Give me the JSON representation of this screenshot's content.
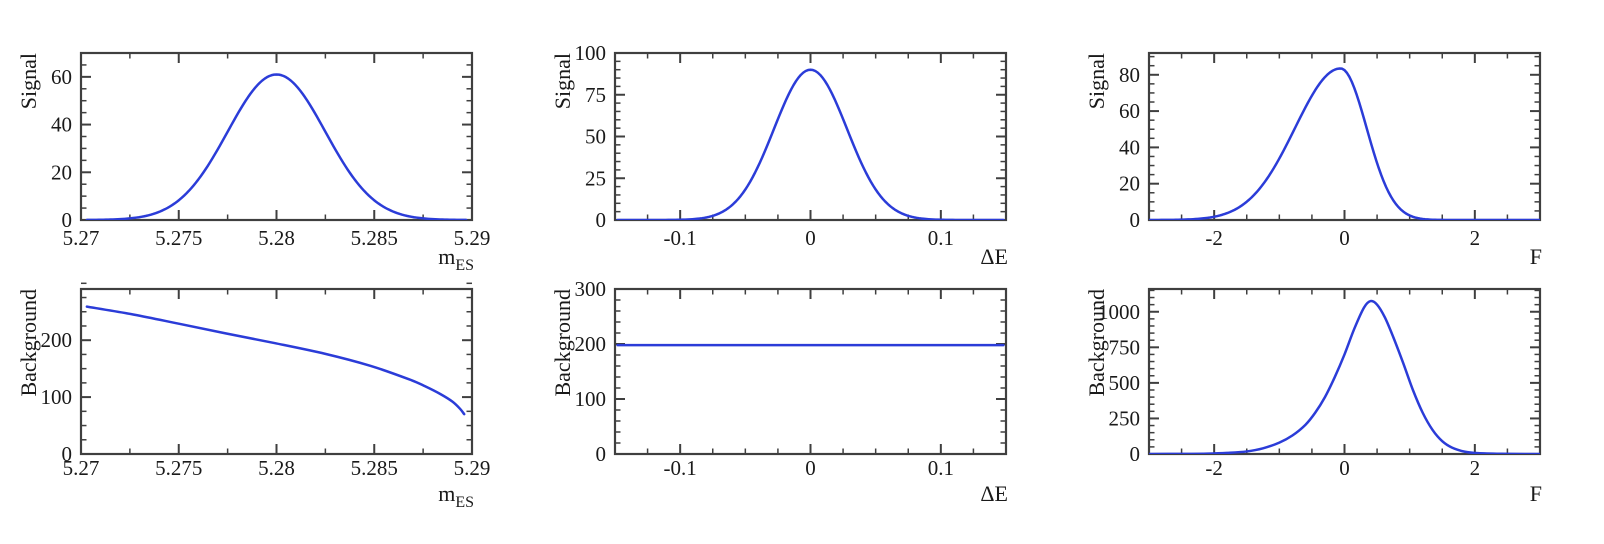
{
  "figure": {
    "description": "Grid of six 1-D probability density curves: Signal and Background PDFs versus the variables mES, DeltaE and F",
    "rows": [
      "Signal",
      "Background"
    ],
    "background_color": "#ffffff"
  },
  "style": {
    "curve_color": "#2b3cd8",
    "frame_color": "#3f3f3f",
    "text_color": "#1a1a1a"
  },
  "chart_data": [
    {
      "id": "signal-mes",
      "panel": "top-left",
      "type": "line",
      "ylabel": "Signal",
      "xlabel": "m",
      "xlabel_sub": "ES",
      "xlim": [
        5.27,
        5.29
      ],
      "ylim": [
        0,
        70
      ],
      "grid": false,
      "legend": null,
      "xticks": {
        "major": [
          5.27,
          5.275,
          5.28,
          5.285,
          5.29
        ],
        "labels": [
          "5.27",
          "5.275",
          "5.28",
          "5.285",
          "5.29"
        ],
        "minor_step": 0.0025
      },
      "yticks": {
        "major": [
          0,
          20,
          40,
          60
        ],
        "labels": [
          "0",
          "20",
          "40",
          "60"
        ],
        "minor_step": 5
      },
      "curve": {
        "shape": "gaussian",
        "mean": 5.28,
        "sigma": 0.0025,
        "peak": 61,
        "x_start": 5.2703,
        "x_end": 5.2897
      }
    },
    {
      "id": "signal-de",
      "panel": "top-middle",
      "type": "line",
      "ylabel": "Signal",
      "xlabel": "ΔE",
      "xlabel_sub": null,
      "xlim": [
        -0.15,
        0.15
      ],
      "ylim": [
        0,
        100
      ],
      "grid": false,
      "legend": null,
      "xticks": {
        "major": [
          -0.1,
          0,
          0.1
        ],
        "labels": [
          "-0.1",
          "0",
          "0.1"
        ],
        "minor_step": 0.025
      },
      "yticks": {
        "major": [
          0,
          25,
          50,
          75,
          100
        ],
        "labels": [
          "0",
          "25",
          "50",
          "75",
          "100"
        ],
        "minor_step": 5
      },
      "curve": {
        "shape": "gaussian",
        "mean": 0,
        "sigma": 0.028,
        "peak": 90,
        "x_start": -0.148,
        "x_end": 0.148
      }
    },
    {
      "id": "signal-f",
      "panel": "top-right",
      "type": "line",
      "ylabel": "Signal",
      "xlabel": "F",
      "xlabel_sub": null,
      "xlim": [
        -3,
        3
      ],
      "ylim": [
        0,
        92
      ],
      "grid": false,
      "legend": null,
      "xticks": {
        "major": [
          -2,
          0,
          2
        ],
        "labels": [
          "-2",
          "0",
          "2"
        ],
        "minor_step": 0.5
      },
      "yticks": {
        "major": [
          0,
          20,
          40,
          60,
          80
        ],
        "labels": [
          "0",
          "20",
          "40",
          "60",
          "80"
        ],
        "minor_step": 5
      },
      "curve": {
        "shape": "bifurcated_gaussian",
        "mean": -0.06,
        "sigma_left": 0.7,
        "sigma_right": 0.4,
        "peak": 83.5,
        "x_start": -3,
        "x_end": 3
      }
    },
    {
      "id": "background-mes",
      "panel": "bottom-left",
      "type": "line",
      "ylabel": "Background",
      "xlabel": "m",
      "xlabel_sub": "ES",
      "xlim": [
        5.27,
        5.29
      ],
      "ylim": [
        0,
        290
      ],
      "grid": false,
      "legend": null,
      "xticks": {
        "major": [
          5.27,
          5.275,
          5.28,
          5.285,
          5.29
        ],
        "labels": [
          "5.27",
          "5.275",
          "5.28",
          "5.285",
          "5.29"
        ],
        "minor_step": 0.0025
      },
      "yticks": {
        "major": [
          0,
          100,
          200
        ],
        "labels": [
          "0",
          "100",
          "200"
        ],
        "minor_step": 25
      },
      "curve": {
        "shape": "points",
        "points": [
          [
            5.2703,
            259
          ],
          [
            5.2727,
            245
          ],
          [
            5.275,
            229
          ],
          [
            5.2774,
            212
          ],
          [
            5.2799,
            195
          ],
          [
            5.2825,
            176
          ],
          [
            5.2848,
            155
          ],
          [
            5.2868,
            131
          ],
          [
            5.2876,
            119
          ],
          [
            5.2884,
            105
          ],
          [
            5.289,
            92
          ],
          [
            5.2894,
            79
          ],
          [
            5.2896,
            70
          ]
        ]
      }
    },
    {
      "id": "background-de",
      "panel": "bottom-middle",
      "type": "line",
      "ylabel": "Background",
      "xlabel": "ΔE",
      "xlabel_sub": null,
      "xlim": [
        -0.15,
        0.15
      ],
      "ylim": [
        0,
        300
      ],
      "grid": false,
      "legend": null,
      "xticks": {
        "major": [
          -0.1,
          0,
          0.1
        ],
        "labels": [
          "-0.1",
          "0",
          "0.1"
        ],
        "minor_step": 0.025
      },
      "yticks": {
        "major": [
          0,
          100,
          200,
          300
        ],
        "labels": [
          "0",
          "100",
          "200",
          "300"
        ],
        "minor_step": 20
      },
      "curve": {
        "shape": "constant",
        "value": 198,
        "x_start": -0.148,
        "x_end": 0.148
      }
    },
    {
      "id": "background-f",
      "panel": "bottom-right",
      "type": "line",
      "ylabel": "Background",
      "xlabel": "F",
      "xlabel_sub": null,
      "xlim": [
        -3,
        3
      ],
      "ylim": [
        0,
        1160
      ],
      "grid": false,
      "legend": null,
      "xticks": {
        "major": [
          -2,
          0,
          2
        ],
        "labels": [
          "-2",
          "0",
          "2"
        ],
        "minor_step": 0.5
      },
      "yticks": {
        "major": [
          0,
          250,
          500,
          750,
          1000
        ],
        "labels": [
          "0",
          "250",
          "500",
          "750",
          "1000"
        ],
        "minor_step": 50
      },
      "curve": {
        "shape": "points",
        "points": [
          [
            -3,
            0
          ],
          [
            -2.5,
            1
          ],
          [
            -2.1,
            3
          ],
          [
            -1.8,
            8
          ],
          [
            -1.5,
            18
          ],
          [
            -1.25,
            40
          ],
          [
            -1.0,
            80
          ],
          [
            -0.8,
            130
          ],
          [
            -0.6,
            205
          ],
          [
            -0.45,
            290
          ],
          [
            -0.3,
            400
          ],
          [
            -0.15,
            540
          ],
          [
            0,
            700
          ],
          [
            0.15,
            880
          ],
          [
            0.3,
            1030
          ],
          [
            0.4,
            1075
          ],
          [
            0.5,
            1050
          ],
          [
            0.62,
            960
          ],
          [
            0.75,
            820
          ],
          [
            0.9,
            640
          ],
          [
            1.05,
            450
          ],
          [
            1.2,
            290
          ],
          [
            1.35,
            170
          ],
          [
            1.5,
            90
          ],
          [
            1.65,
            45
          ],
          [
            1.85,
            16
          ],
          [
            2.05,
            6
          ],
          [
            2.4,
            1.5
          ],
          [
            2.8,
            0.3
          ],
          [
            3,
            0
          ]
        ]
      }
    }
  ]
}
